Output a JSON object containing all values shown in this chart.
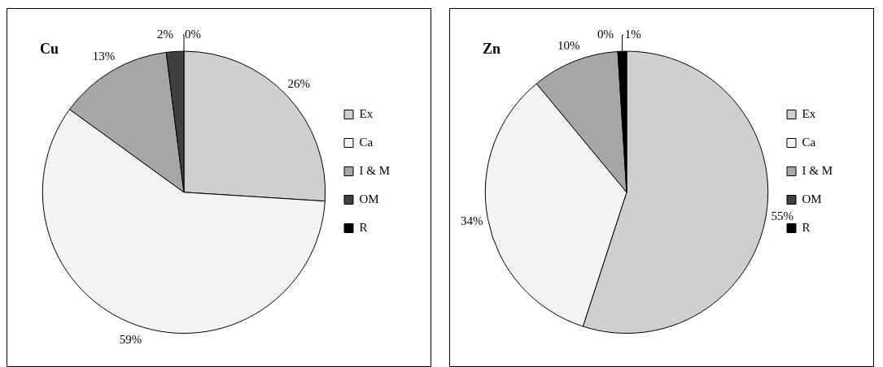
{
  "chart_data": [
    {
      "type": "pie",
      "title": "Cu",
      "categories": [
        "Ex",
        "Ca",
        "I & M",
        "OM",
        "R"
      ],
      "values": [
        26,
        59,
        13,
        2,
        0
      ],
      "value_labels": [
        "26%",
        "59%",
        "13%",
        "2%",
        "0%"
      ],
      "colors": [
        "#cfcfcf",
        "#f3f3f3",
        "#a6a6a6",
        "#404040",
        "#000000"
      ],
      "legend": "right"
    },
    {
      "type": "pie",
      "title": "Zn",
      "categories": [
        "Ex",
        "Ca",
        "I & M",
        "OM",
        "R"
      ],
      "values": [
        55,
        34,
        10,
        0,
        1
      ],
      "value_labels": [
        "55%",
        "34%",
        "10%",
        "0%",
        "1%"
      ],
      "colors": [
        "#cfcfcf",
        "#f3f3f3",
        "#a6a6a6",
        "#404040",
        "#000000"
      ],
      "legend": "right"
    }
  ]
}
